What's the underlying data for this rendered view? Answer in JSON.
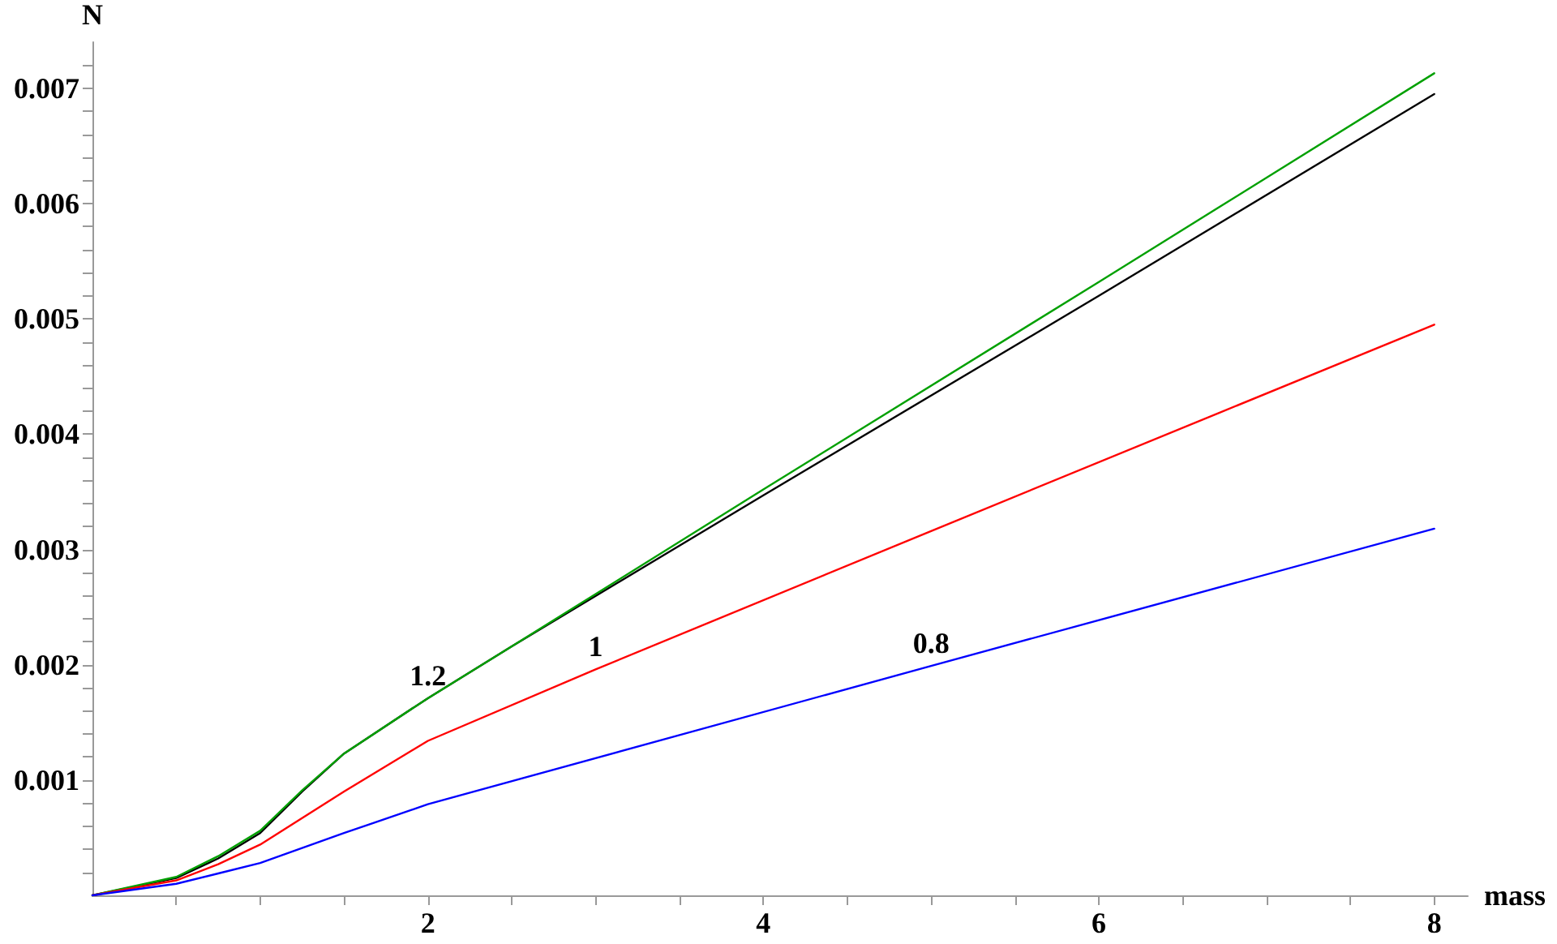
{
  "chart_data": {
    "type": "line",
    "xlabel": "mass",
    "ylabel": "N",
    "xlim": [
      0,
      8.2
    ],
    "ylim": [
      0,
      0.0074
    ],
    "xticks": [
      {
        "value": 0.5,
        "label": null
      },
      {
        "value": 1,
        "label": null
      },
      {
        "value": 1.5,
        "label": null
      },
      2,
      {
        "value": 2.5,
        "label": null
      },
      {
        "value": 3,
        "label": null
      },
      {
        "value": 3.5,
        "label": null
      },
      4,
      {
        "value": 4.5,
        "label": null
      },
      {
        "value": 5,
        "label": null
      },
      {
        "value": 5.5,
        "label": null
      },
      6,
      {
        "value": 6.5,
        "label": null
      },
      {
        "value": 7,
        "label": null
      },
      {
        "value": 7.5,
        "label": null
      },
      8
    ],
    "yticks": [
      {
        "value": 0.0002,
        "label": null
      },
      {
        "value": 0.0004,
        "label": null
      },
      {
        "value": 0.0006,
        "label": null
      },
      {
        "value": 0.0008,
        "label": null
      },
      0.001,
      {
        "value": 0.0012,
        "label": null
      },
      {
        "value": 0.0014,
        "label": null
      },
      {
        "value": 0.0016,
        "label": null
      },
      {
        "value": 0.0018,
        "label": null
      },
      0.002,
      {
        "value": 0.0022,
        "label": null
      },
      {
        "value": 0.0024,
        "label": null
      },
      {
        "value": 0.0026,
        "label": null
      },
      {
        "value": 0.0028,
        "label": null
      },
      0.003,
      {
        "value": 0.0032,
        "label": null
      },
      {
        "value": 0.0034,
        "label": null
      },
      {
        "value": 0.0036,
        "label": null
      },
      {
        "value": 0.0038,
        "label": null
      },
      0.004,
      {
        "value": 0.0042,
        "label": null
      },
      {
        "value": 0.0044,
        "label": null
      },
      {
        "value": 0.0046,
        "label": null
      },
      {
        "value": 0.0048,
        "label": null
      },
      0.005,
      {
        "value": 0.0052,
        "label": null
      },
      {
        "value": 0.0054,
        "label": null
      },
      {
        "value": 0.0056,
        "label": null
      },
      {
        "value": 0.0058,
        "label": null
      },
      0.006,
      {
        "value": 0.0062,
        "label": null
      },
      {
        "value": 0.0064,
        "label": null
      },
      {
        "value": 0.0066,
        "label": null
      },
      {
        "value": 0.0068,
        "label": null
      },
      0.007,
      {
        "value": 0.0072,
        "label": null
      }
    ],
    "grid": false,
    "marker": "none",
    "line_style": "solid",
    "series": [
      {
        "color": "#000000",
        "x": [
          0,
          0.5,
          0.75,
          1,
          1.25,
          1.5,
          2,
          2.5,
          4,
          6,
          8
        ],
        "values": [
          0,
          0.00015,
          0.00032,
          0.00054,
          0.0009,
          0.00123,
          0.00171,
          0.00216,
          0.00347,
          0.0052,
          0.00695
        ]
      },
      {
        "color": "#00a000",
        "x": [
          0,
          0.5,
          0.75,
          1,
          1.25,
          1.5,
          2,
          2.5,
          4,
          6,
          8
        ],
        "values": [
          0,
          0.00016,
          0.00034,
          0.00056,
          0.00091,
          0.00123,
          0.00171,
          0.00216,
          0.00352,
          0.00532,
          0.00713
        ]
      },
      {
        "color": "#ff0000",
        "x": [
          0,
          0.5,
          0.75,
          1,
          1.5,
          2,
          3,
          5,
          8
        ],
        "values": [
          0,
          0.00013,
          0.00027,
          0.00044,
          0.0009,
          0.00134,
          0.00196,
          0.00316,
          0.00495
        ]
      },
      {
        "color": "#0000ff",
        "x": [
          0,
          0.5,
          0.75,
          1,
          1.5,
          2,
          5,
          8
        ],
        "values": [
          0,
          0.0001,
          0.00019,
          0.00028,
          0.00054,
          0.00079,
          0.00199,
          0.00318
        ]
      }
    ],
    "annotations": [
      {
        "text": "1.2",
        "x": 2,
        "y": 0.00171
      },
      {
        "text": "1",
        "x": 3,
        "y": 0.00196
      },
      {
        "text": "0.8",
        "x": 5,
        "y": 0.00199
      }
    ]
  }
}
